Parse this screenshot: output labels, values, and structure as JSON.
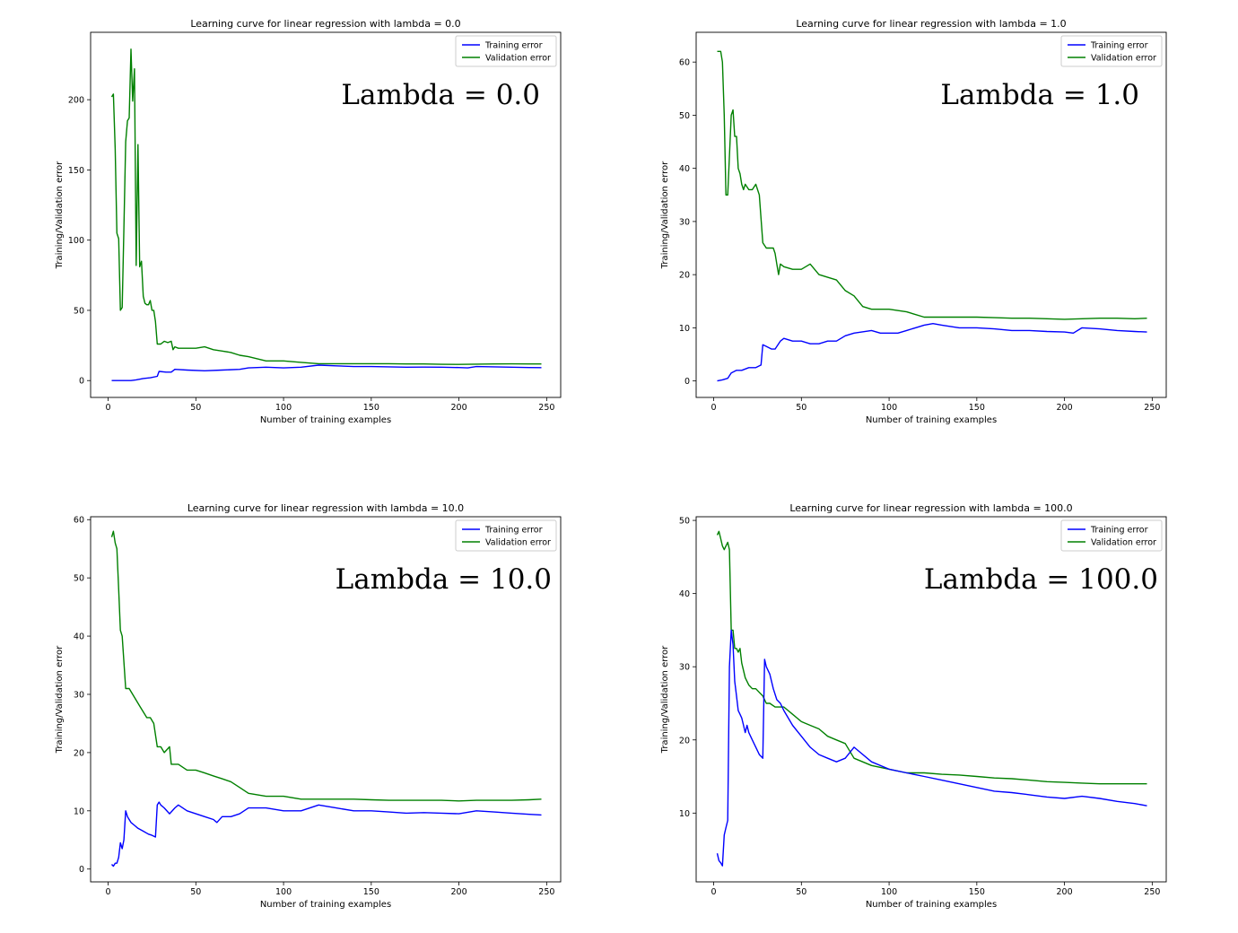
{
  "colors": {
    "training": "#0000ff",
    "validation": "#008000",
    "axes": "#000000",
    "legend_border": "#cccccc"
  },
  "chart_data": [
    {
      "type": "line",
      "title": "Learning curve for linear regression with lambda = 0.0",
      "annotation": "Lambda = 0.0",
      "xlabel": "Number of training examples",
      "ylabel": "Training/Validation error",
      "xlim": [
        -10,
        258
      ],
      "ylim": [
        -12,
        248
      ],
      "xticks": [
        0,
        50,
        100,
        150,
        200,
        250
      ],
      "yticks": [
        0,
        50,
        100,
        150,
        200
      ],
      "legend": "top-right",
      "grid": false,
      "series": [
        {
          "name": "Training error",
          "color": "#0000ff",
          "x": [
            2,
            6,
            10,
            13,
            16,
            20,
            24,
            28,
            29,
            33,
            36,
            38,
            45,
            55,
            65,
            75,
            80,
            90,
            100,
            110,
            120,
            130,
            140,
            150,
            160,
            170,
            180,
            190,
            200,
            205,
            210,
            220,
            230,
            240,
            247
          ],
          "y": [
            0,
            0,
            0,
            0,
            0.5,
            1.5,
            2,
            3,
            6.5,
            6,
            6,
            8,
            7.5,
            7,
            7.5,
            8,
            9,
            9.5,
            9,
            9.5,
            11,
            10.5,
            10,
            10,
            9.8,
            9.5,
            9.6,
            9.5,
            9.3,
            9,
            10,
            9.8,
            9.5,
            9.3,
            9.2
          ]
        },
        {
          "name": "Validation error",
          "color": "#008000",
          "x": [
            2,
            3,
            4,
            5,
            6,
            7,
            8,
            9,
            10,
            11,
            12,
            13,
            14,
            15,
            16,
            17,
            18,
            19,
            20,
            21,
            22,
            23,
            24,
            25,
            26,
            27,
            28,
            30,
            32,
            34,
            36,
            37,
            38,
            40,
            45,
            50,
            55,
            60,
            65,
            70,
            75,
            80,
            90,
            100,
            110,
            120,
            130,
            140,
            150,
            160,
            170,
            180,
            190,
            200,
            210,
            220,
            230,
            240,
            247
          ],
          "y": [
            202,
            204,
            165,
            105,
            101,
            50,
            52,
            108,
            170,
            185,
            187,
            236,
            199,
            222,
            82,
            168,
            81,
            85,
            60,
            55,
            54,
            54,
            57,
            50,
            50,
            42,
            26,
            26,
            28,
            27,
            28,
            22,
            24,
            23,
            23,
            23,
            24,
            22,
            21,
            20,
            18,
            17,
            14,
            14,
            13,
            12,
            12,
            12,
            12,
            12,
            11.8,
            11.8,
            11.6,
            11.5,
            11.7,
            11.8,
            11.9,
            11.8,
            11.8
          ]
        }
      ]
    },
    {
      "type": "line",
      "title": "Learning curve for linear regression with lambda = 1.0",
      "annotation": "Lambda = 1.0",
      "xlabel": "Number of training examples",
      "ylabel": "Training/Validation error",
      "xlim": [
        -10,
        258
      ],
      "ylim": [
        -3.1,
        65.6
      ],
      "xticks": [
        0,
        50,
        100,
        150,
        200,
        250
      ],
      "yticks": [
        0,
        10,
        20,
        30,
        40,
        50,
        60
      ],
      "legend": "top-right",
      "grid": false,
      "series": [
        {
          "name": "Training error",
          "color": "#0000ff",
          "x": [
            2,
            5,
            8,
            10,
            13,
            16,
            20,
            24,
            27,
            28,
            30,
            33,
            35,
            38,
            40,
            45,
            50,
            55,
            60,
            65,
            70,
            75,
            80,
            90,
            95,
            100,
            105,
            110,
            115,
            120,
            125,
            130,
            140,
            150,
            160,
            170,
            180,
            190,
            200,
            205,
            210,
            220,
            230,
            240,
            247
          ],
          "y": [
            0,
            0.2,
            0.5,
            1.5,
            2,
            2,
            2.5,
            2.5,
            3,
            6.8,
            6.5,
            6,
            6,
            7.5,
            8,
            7.5,
            7.5,
            7,
            7,
            7.5,
            7.5,
            8.5,
            9,
            9.5,
            9,
            9,
            9,
            9.5,
            10,
            10.5,
            10.8,
            10.5,
            10,
            10,
            9.8,
            9.5,
            9.5,
            9.3,
            9.2,
            9,
            10,
            9.8,
            9.5,
            9.3,
            9.2
          ]
        },
        {
          "name": "Validation error",
          "color": "#008000",
          "x": [
            2,
            4,
            5,
            6,
            7,
            8,
            10,
            11,
            12,
            13,
            14,
            15,
            16,
            17,
            18,
            20,
            22,
            24,
            26,
            28,
            30,
            33,
            34,
            35,
            36,
            37,
            38,
            40,
            45,
            50,
            55,
            60,
            65,
            70,
            75,
            80,
            85,
            90,
            100,
            110,
            120,
            130,
            140,
            150,
            160,
            170,
            180,
            190,
            200,
            210,
            220,
            230,
            240,
            247
          ],
          "y": [
            62,
            62,
            60,
            50,
            35,
            35,
            50,
            51,
            46,
            46,
            40,
            39,
            37,
            36,
            37,
            36,
            36,
            37,
            35,
            26,
            25,
            25,
            25,
            24,
            22,
            20,
            22,
            21.5,
            21,
            21,
            22,
            20,
            19.5,
            19,
            17,
            16,
            14,
            13.5,
            13.5,
            13,
            12,
            12,
            12,
            12,
            11.9,
            11.8,
            11.8,
            11.7,
            11.6,
            11.7,
            11.8,
            11.8,
            11.7,
            11.8
          ]
        }
      ]
    },
    {
      "type": "line",
      "title": "Learning curve for linear regression with lambda = 10.0",
      "annotation": "Lambda = 10.0",
      "xlabel": "Number of training examples",
      "ylabel": "Training/Validation error",
      "xlim": [
        -10,
        258
      ],
      "ylim": [
        -2.2,
        60.5
      ],
      "xticks": [
        0,
        50,
        100,
        150,
        200,
        250
      ],
      "yticks": [
        0,
        10,
        20,
        30,
        40,
        50,
        60
      ],
      "legend": "top-right",
      "grid": false,
      "series": [
        {
          "name": "Training error",
          "color": "#0000ff",
          "x": [
            2,
            3,
            4,
            5,
            6,
            7,
            8,
            9,
            10,
            11,
            12,
            13,
            15,
            17,
            20,
            23,
            25,
            27,
            28,
            29,
            30,
            32,
            35,
            38,
            40,
            45,
            50,
            55,
            60,
            62,
            65,
            70,
            75,
            80,
            90,
            100,
            110,
            120,
            130,
            140,
            150,
            160,
            170,
            180,
            190,
            200,
            210,
            220,
            230,
            240,
            247
          ],
          "y": [
            0.8,
            0.5,
            1,
            1,
            2,
            4.5,
            3.5,
            5,
            10,
            9,
            8.5,
            8,
            7.5,
            7,
            6.5,
            6,
            5.8,
            5.5,
            11,
            11.5,
            11,
            10.5,
            9.5,
            10.5,
            11,
            10,
            9.5,
            9,
            8.5,
            8,
            9,
            9,
            9.5,
            10.5,
            10.5,
            10,
            10,
            11,
            10.5,
            10,
            10,
            9.8,
            9.6,
            9.7,
            9.6,
            9.5,
            10,
            9.8,
            9.6,
            9.4,
            9.3
          ]
        },
        {
          "name": "Validation error",
          "color": "#008000",
          "x": [
            2,
            3,
            4,
            5,
            6,
            7,
            8,
            10,
            12,
            14,
            16,
            18,
            20,
            22,
            24,
            26,
            28,
            30,
            32,
            35,
            36,
            38,
            40,
            45,
            50,
            55,
            60,
            65,
            70,
            75,
            80,
            90,
            100,
            110,
            120,
            130,
            140,
            150,
            160,
            170,
            180,
            190,
            200,
            210,
            220,
            230,
            240,
            247
          ],
          "y": [
            57,
            58,
            56,
            55,
            48,
            41,
            40,
            31,
            31,
            30,
            29,
            28,
            27,
            26,
            26,
            25,
            21,
            21,
            20,
            21,
            18,
            18,
            18,
            17,
            17,
            16.5,
            16,
            15.5,
            15,
            14,
            13,
            12.5,
            12.5,
            12,
            12,
            12,
            12,
            11.9,
            11.8,
            11.8,
            11.8,
            11.8,
            11.7,
            11.8,
            11.8,
            11.8,
            11.9,
            12
          ]
        }
      ]
    },
    {
      "type": "line",
      "title": "Learning curve for linear regression with lambda = 100.0",
      "annotation": "Lambda = 100.0",
      "xlabel": "Number of training examples",
      "ylabel": "Training/Validation error",
      "xlim": [
        -10,
        258
      ],
      "ylim": [
        0.6,
        50.5
      ],
      "xticks": [
        0,
        50,
        100,
        150,
        200,
        250
      ],
      "yticks": [
        10,
        20,
        30,
        40,
        50
      ],
      "legend": "top-right",
      "grid": false,
      "series": [
        {
          "name": "Training error",
          "color": "#0000ff",
          "x": [
            2,
            3,
            4,
            5,
            6,
            7,
            8,
            9,
            10,
            11,
            12,
            13,
            14,
            15,
            16,
            17,
            18,
            19,
            20,
            22,
            24,
            26,
            28,
            29,
            30,
            32,
            34,
            36,
            38,
            40,
            45,
            50,
            55,
            60,
            65,
            70,
            75,
            80,
            90,
            100,
            110,
            120,
            130,
            140,
            150,
            160,
            170,
            180,
            190,
            200,
            210,
            220,
            230,
            240,
            247
          ],
          "y": [
            4.5,
            3.5,
            3.2,
            2.8,
            7,
            8,
            9,
            30,
            35,
            33,
            28,
            26,
            24,
            23.5,
            23,
            22,
            21,
            22,
            21,
            20,
            19,
            18,
            17.5,
            31,
            30,
            29,
            27,
            25.5,
            25,
            24,
            22,
            20.5,
            19,
            18,
            17.5,
            17,
            17.5,
            19,
            17,
            16,
            15.5,
            15,
            14.5,
            14,
            13.5,
            13,
            12.8,
            12.5,
            12.2,
            12,
            12.3,
            12,
            11.6,
            11.3,
            11
          ]
        },
        {
          "name": "Validation error",
          "color": "#008000",
          "x": [
            2,
            3,
            4,
            5,
            6,
            7,
            8,
            9,
            10,
            11,
            12,
            13,
            14,
            15,
            16,
            18,
            20,
            22,
            24,
            26,
            28,
            30,
            32,
            35,
            38,
            40,
            45,
            50,
            55,
            60,
            65,
            70,
            75,
            80,
            90,
            100,
            110,
            120,
            130,
            140,
            150,
            160,
            170,
            180,
            190,
            200,
            210,
            220,
            230,
            240,
            247
          ],
          "y": [
            48,
            48.5,
            47.5,
            46.5,
            46,
            46.5,
            47,
            46,
            35,
            35,
            32.5,
            32.5,
            32,
            32.5,
            30.5,
            28.5,
            27.5,
            27,
            27,
            26.5,
            26,
            25,
            25,
            24.5,
            24.5,
            24.5,
            23.5,
            22.5,
            22,
            21.5,
            20.5,
            20,
            19.5,
            17.5,
            16.5,
            16,
            15.5,
            15.5,
            15.3,
            15.2,
            15,
            14.8,
            14.7,
            14.5,
            14.3,
            14.2,
            14.1,
            14,
            14,
            14,
            14
          ]
        }
      ]
    }
  ]
}
